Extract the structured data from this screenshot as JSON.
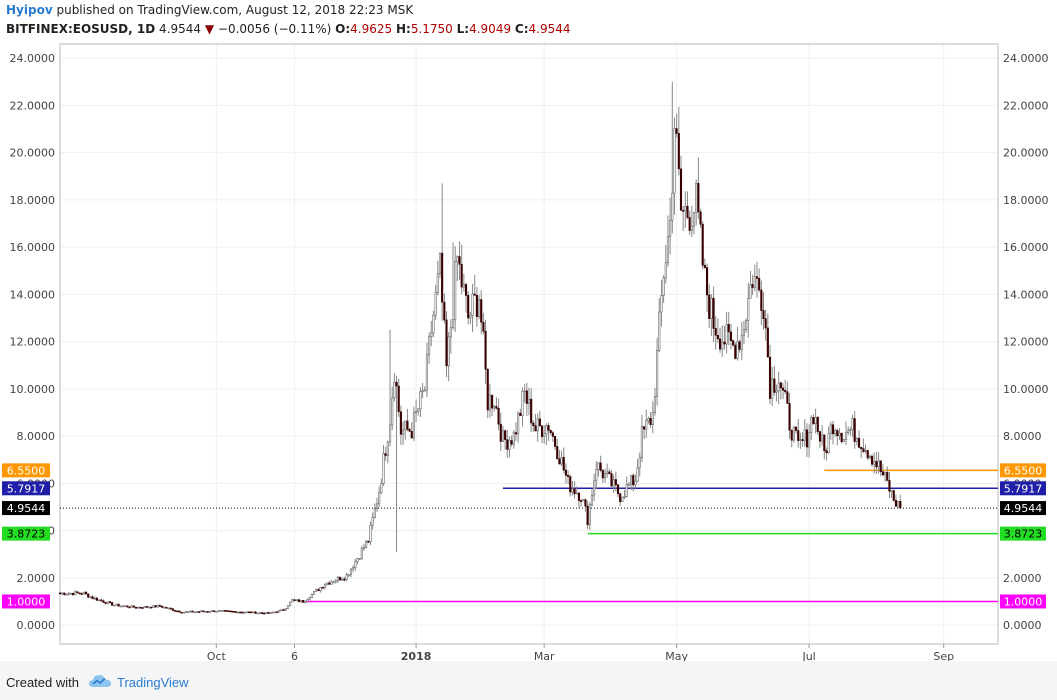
{
  "header": {
    "author": "Hyipov",
    "published_text": "published on TradingView.com, August 12, 2018 22:23 MSK"
  },
  "symbol_bar": {
    "symbol": "BITFINEX:EOSUSD, 1D",
    "last": "4.9544",
    "arrow": "▼",
    "change": "−0.0056 (−0.11%)",
    "open_label": "O:",
    "open": "4.9625",
    "high_label": "H:",
    "high": "5.1750",
    "low_label": "L:",
    "low": "4.9049",
    "close_label": "C:",
    "close": "4.9544"
  },
  "footer": {
    "created_with": "Created with",
    "brand": "TradingView"
  },
  "colors": {
    "up": "#ffffff",
    "down": "#3a0000",
    "wick": "#888888",
    "orange": "#ff9800",
    "blue": "#1e1ea8",
    "green": "#22dd22",
    "magenta": "#ff00ff",
    "price": "#000000"
  },
  "chart_data": {
    "type": "candlestick",
    "title": "BITFINEX:EOSUSD, 1D",
    "ylim": [
      -0.8,
      24.6
    ],
    "y_ticks": [
      "0.0000",
      "2.0000",
      "4.0000",
      "6.0000",
      "8.0000",
      "10.0000",
      "12.0000",
      "14.0000",
      "16.0000",
      "18.0000",
      "20.0000",
      "22.0000",
      "24.0000"
    ],
    "x_ticks": [
      {
        "label": "Oct",
        "date": "2017-10-01"
      },
      {
        "label": "6",
        "date": "2017-11-06"
      },
      {
        "label": "2018",
        "date": "2018-01-01"
      },
      {
        "label": "Mar",
        "date": "2018-03-01"
      },
      {
        "label": "May",
        "date": "2018-05-01"
      },
      {
        "label": "Jul",
        "date": "2018-07-01"
      },
      {
        "label": "Sep",
        "date": "2018-09-01"
      }
    ],
    "x_range": [
      "2017-07-21",
      "2018-09-26"
    ],
    "levels": [
      {
        "label": "6.5500",
        "value": 6.55,
        "color": "#ff9800",
        "from": "2018-07-08"
      },
      {
        "label": "5.7917",
        "value": 5.7917,
        "color": "#1e1ea8",
        "from": "2018-02-10"
      },
      {
        "label": "3.8723",
        "value": 3.8723,
        "color": "#22dd22",
        "from": "2018-03-21"
      },
      {
        "label": "1.0000",
        "value": 1.0,
        "color": "#ff00ff",
        "from": "2017-11-11"
      },
      {
        "label": "4.9544",
        "value": 4.9544,
        "color": "#000000",
        "from": "2017-07-21",
        "dotted": true
      }
    ],
    "close_anchors": [
      [
        "2017-07-21",
        1.35
      ],
      [
        "2017-08-01",
        1.35
      ],
      [
        "2017-08-05",
        1.15
      ],
      [
        "2017-08-15",
        0.85
      ],
      [
        "2017-08-25",
        0.75
      ],
      [
        "2017-09-05",
        0.8
      ],
      [
        "2017-09-15",
        0.55
      ],
      [
        "2017-10-01",
        0.6
      ],
      [
        "2017-10-15",
        0.55
      ],
      [
        "2017-10-25",
        0.5
      ],
      [
        "2017-11-01",
        0.65
      ],
      [
        "2017-11-05",
        1.05
      ],
      [
        "2017-11-10",
        1.0
      ],
      [
        "2017-11-20",
        1.75
      ],
      [
        "2017-11-30",
        2.1
      ],
      [
        "2017-12-10",
        3.6
      ],
      [
        "2017-12-15",
        5.7
      ],
      [
        "2017-12-20",
        8.8
      ],
      [
        "2017-12-22",
        10.9
      ],
      [
        "2017-12-25",
        8.2
      ],
      [
        "2017-12-30",
        8.3
      ],
      [
        "2018-01-05",
        10.0
      ],
      [
        "2018-01-08",
        12.5
      ],
      [
        "2018-01-12",
        15.0
      ],
      [
        "2018-01-15",
        10.8
      ],
      [
        "2018-01-20",
        15.5
      ],
      [
        "2018-01-25",
        13.0
      ],
      [
        "2018-01-30",
        14.0
      ],
      [
        "2018-02-03",
        9.5
      ],
      [
        "2018-02-06",
        9.6
      ],
      [
        "2018-02-10",
        7.8
      ],
      [
        "2018-02-15",
        8.0
      ],
      [
        "2018-02-20",
        9.8
      ],
      [
        "2018-02-25",
        8.3
      ],
      [
        "2018-03-03",
        8.5
      ],
      [
        "2018-03-08",
        7.2
      ],
      [
        "2018-03-12",
        6.0
      ],
      [
        "2018-03-18",
        5.5
      ],
      [
        "2018-03-21",
        4.5
      ],
      [
        "2018-03-25",
        6.8
      ],
      [
        "2018-03-30",
        6.2
      ],
      [
        "2018-04-05",
        5.5
      ],
      [
        "2018-04-08",
        5.8
      ],
      [
        "2018-04-12",
        6.2
      ],
      [
        "2018-04-15",
        8.0
      ],
      [
        "2018-04-20",
        8.9
      ],
      [
        "2018-04-25",
        15.0
      ],
      [
        "2018-04-28",
        17.0
      ],
      [
        "2018-04-30",
        21.3
      ],
      [
        "2018-05-03",
        17.5
      ],
      [
        "2018-05-06",
        17.5
      ],
      [
        "2018-05-10",
        17.8
      ],
      [
        "2018-05-14",
        14.5
      ],
      [
        "2018-05-18",
        12.8
      ],
      [
        "2018-05-22",
        12.2
      ],
      [
        "2018-05-27",
        11.8
      ],
      [
        "2018-05-31",
        12.3
      ],
      [
        "2018-06-05",
        14.8
      ],
      [
        "2018-06-10",
        13.8
      ],
      [
        "2018-06-13",
        10.2
      ],
      [
        "2018-06-17",
        10.5
      ],
      [
        "2018-06-22",
        8.6
      ],
      [
        "2018-06-26",
        7.5
      ],
      [
        "2018-06-30",
        8.0
      ],
      [
        "2018-07-03",
        9.0
      ],
      [
        "2018-07-08",
        7.3
      ],
      [
        "2018-07-12",
        8.6
      ],
      [
        "2018-07-17",
        8.1
      ],
      [
        "2018-07-21",
        8.3
      ],
      [
        "2018-07-25",
        7.8
      ],
      [
        "2018-07-29",
        7.3
      ],
      [
        "2018-08-02",
        6.7
      ],
      [
        "2018-08-06",
        6.0
      ],
      [
        "2018-08-09",
        5.3
      ],
      [
        "2018-08-12",
        4.9544
      ]
    ],
    "spikes": [
      {
        "date": "2017-12-20",
        "high": 12.5
      },
      {
        "date": "2017-12-23",
        "low": 3.1
      },
      {
        "date": "2018-01-13",
        "high": 18.7
      },
      {
        "date": "2018-01-18",
        "high": 16.2
      },
      {
        "date": "2018-04-29",
        "high": 23.0
      }
    ]
  }
}
